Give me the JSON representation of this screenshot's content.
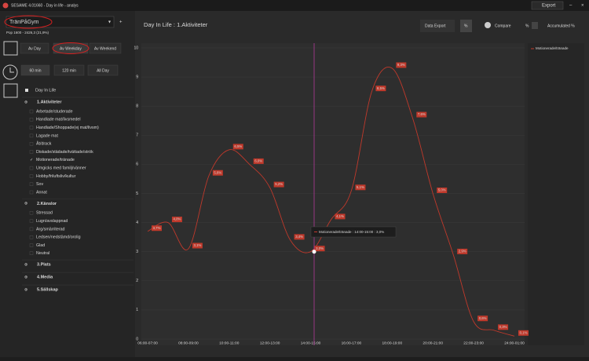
{
  "window": {
    "title": "SESAME 4.01660 - Day in life - analys",
    "export": "Export"
  },
  "sidebar": {
    "target": "TränPåGym",
    "population": "Pop 1600 - 2426,3 (21,9%)",
    "day_buttons": [
      "Av Day",
      "Av Weekday",
      "Av Weekend"
    ],
    "interval_buttons": [
      "60 min",
      "120 min",
      "All Day"
    ],
    "tree_root": "Day In Life",
    "groups": [
      {
        "label": "1.Aktiviteter",
        "items": [
          {
            "label": "Arbetade/studerade",
            "checked": false
          },
          {
            "label": "Handlade mat/livsmedel",
            "checked": false
          },
          {
            "label": "Handlade/Shoppade(ej mat/livsm)",
            "checked": false
          },
          {
            "label": "Lagade mat",
            "checked": false
          },
          {
            "label": "Åt/drack",
            "checked": false
          },
          {
            "label": "Diskade/städade/tvättade/strök",
            "checked": false
          },
          {
            "label": "Motionerade/tränade",
            "checked": true
          },
          {
            "label": "Umgicks med familj/vänner",
            "checked": false
          },
          {
            "label": "Hobby/friluftsliv/kultur",
            "checked": false
          },
          {
            "label": "Sov",
            "checked": false
          },
          {
            "label": "Annat",
            "checked": false
          }
        ]
      },
      {
        "label": "2.Känslor",
        "items": [
          {
            "label": "Stressad",
            "checked": false
          },
          {
            "label": "Lugn/avslappnad",
            "checked": false
          },
          {
            "label": "Arg/smärriterad",
            "checked": false
          },
          {
            "label": "Ledsen/nedstämd/orolig",
            "checked": false
          },
          {
            "label": "Glad",
            "checked": false
          },
          {
            "label": "Neutral",
            "checked": false
          }
        ]
      },
      {
        "label": "3.Plats",
        "items": []
      },
      {
        "label": "4.Media",
        "items": []
      },
      {
        "label": "5.Sällskap",
        "items": []
      }
    ]
  },
  "toolbar": {
    "heading": "Day In Life : 1.Aktiviteter",
    "data_export": "Data Export",
    "percent": "%",
    "compare": "Compare",
    "percent_2": "%",
    "accumulated": "Accumulated %"
  },
  "chart_data": {
    "type": "line",
    "categories": [
      "06:00-07:00",
      null,
      "08:00-09:00",
      null,
      "10:00-11:00",
      null,
      "12:00-13:00",
      null,
      "14:00-15:00",
      null,
      "16:00-17:00",
      null,
      "18:00-19:00",
      null,
      "20:00-21:00",
      null,
      "22:00-23:00",
      null,
      "24:00-01:00"
    ],
    "series": [
      {
        "name": "Motionerade/tränade",
        "color": "#c0392b",
        "values": [
          3.7,
          4.0,
          3.1,
          5.6,
          6.5,
          6.0,
          5.2,
          3.4,
          3.0,
          4.1,
          5.1,
          8.5,
          9.3,
          7.6,
          5.0,
          2.9,
          0.6,
          0.3,
          0.1
        ],
        "value_labels": [
          "3,7%",
          "4,0%",
          "3,1%",
          "5,6%",
          "6,5%",
          "6,0%",
          "5,2%",
          "3,4%",
          "3,0%",
          "4,1%",
          "5,1%",
          "8,5%",
          "9,3%",
          "7,6%",
          "5,0%",
          "2,9%",
          "0,6%",
          "0,3%",
          "0,1%"
        ]
      }
    ],
    "ylim": [
      0,
      10
    ],
    "yticks": [
      0,
      1,
      2,
      3,
      4,
      5,
      6,
      7,
      8,
      9,
      10
    ],
    "grid": true,
    "legend": "top-right",
    "tooltip": "Motionerade/tränade : 14:00-15:00 : 3,0%"
  }
}
